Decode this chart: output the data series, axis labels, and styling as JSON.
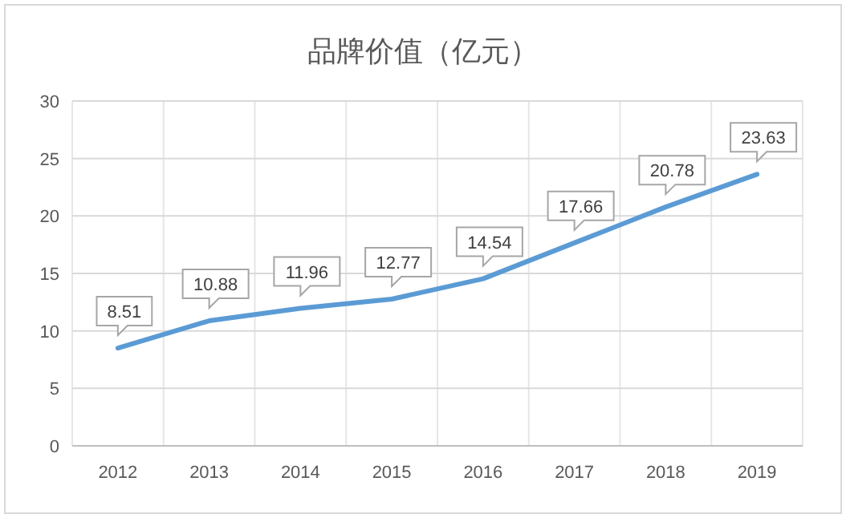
{
  "chart_data": {
    "type": "line",
    "title": "品牌价值（亿元）",
    "categories": [
      "2012",
      "2013",
      "2014",
      "2015",
      "2016",
      "2017",
      "2018",
      "2019"
    ],
    "series": [
      {
        "color": "#5b9bd5",
        "values": [
          8.51,
          10.88,
          11.96,
          12.77,
          14.54,
          17.66,
          20.78,
          23.63
        ]
      }
    ],
    "ylim": [
      0,
      30
    ],
    "yticks": [
      0,
      5,
      10,
      15,
      20,
      25,
      30
    ],
    "grid": true,
    "data_labels": true,
    "marker": "none",
    "line_style": "solid"
  }
}
